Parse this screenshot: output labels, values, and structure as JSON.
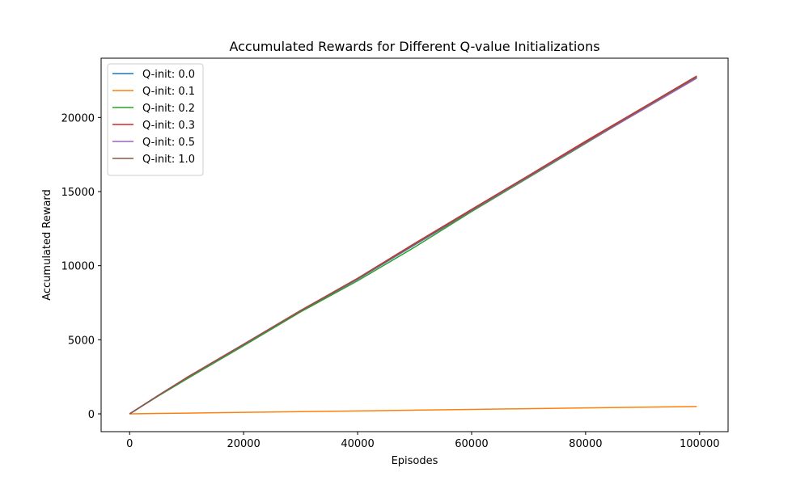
{
  "chart_data": {
    "type": "line",
    "title": "Accumulated Rewards for Different Q-value Initializations",
    "xlabel": "Episodes",
    "ylabel": "Accumulated Reward",
    "xlim": [
      -5000,
      105000
    ],
    "ylim": [
      -1200,
      24000
    ],
    "xticks": [
      0,
      20000,
      40000,
      60000,
      80000,
      100000
    ],
    "xtick_labels": [
      "0",
      "20000",
      "40000",
      "60000",
      "80000",
      "100000"
    ],
    "yticks": [
      0,
      5000,
      10000,
      15000,
      20000
    ],
    "ytick_labels": [
      "0",
      "5000",
      "10000",
      "15000",
      "20000"
    ],
    "grid": false,
    "legend_position": "upper-left",
    "x": [
      0,
      5000,
      10000,
      20000,
      30000,
      40000,
      50000,
      60000,
      70000,
      80000,
      90000,
      99500
    ],
    "series": [
      {
        "name": "Q-init: 0.0",
        "color": "#1f77b4",
        "values": [
          0,
          1220,
          2400,
          4660,
          6930,
          9080,
          11400,
          13700,
          16000,
          18300,
          20600,
          22700
        ]
      },
      {
        "name": "Q-init: 0.1",
        "color": "#ff7f0e",
        "values": [
          0,
          25,
          50,
          100,
          150,
          200,
          250,
          300,
          350,
          400,
          450,
          500
        ]
      },
      {
        "name": "Q-init: 0.2",
        "color": "#2ca02c",
        "values": [
          0,
          1200,
          2350,
          4600,
          6880,
          8980,
          11250,
          13650,
          15950,
          18250,
          20550,
          22700
        ]
      },
      {
        "name": "Q-init: 0.3",
        "color": "#d62728",
        "values": [
          0,
          1240,
          2450,
          4700,
          6980,
          9150,
          11500,
          13800,
          16080,
          18400,
          20650,
          22800
        ]
      },
      {
        "name": "Q-init: 0.5",
        "color": "#9467bd",
        "values": [
          0,
          1230,
          2420,
          4680,
          6960,
          9100,
          11430,
          13720,
          16000,
          18280,
          20520,
          22650
        ]
      },
      {
        "name": "Q-init: 1.0",
        "color": "#8c564b",
        "values": [
          0,
          1235,
          2430,
          4690,
          6950,
          9120,
          11450,
          13750,
          16040,
          18330,
          20600,
          22750
        ]
      }
    ]
  }
}
